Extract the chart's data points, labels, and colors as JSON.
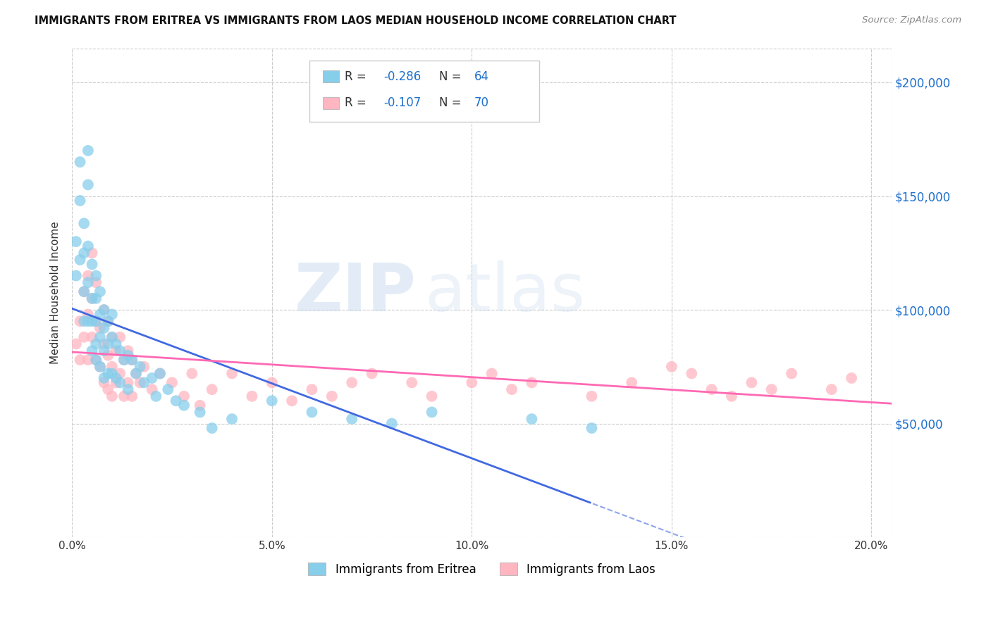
{
  "title": "IMMIGRANTS FROM ERITREA VS IMMIGRANTS FROM LAOS MEDIAN HOUSEHOLD INCOME CORRELATION CHART",
  "source": "Source: ZipAtlas.com",
  "xlabel_ticks": [
    "0.0%",
    "5.0%",
    "10.0%",
    "15.0%",
    "20.0%"
  ],
  "xlabel_tick_vals": [
    0.0,
    0.05,
    0.1,
    0.15,
    0.2
  ],
  "ylabel": "Median Household Income",
  "ylabel_ticks": [
    0,
    50000,
    100000,
    150000,
    200000
  ],
  "ylabel_tick_labels": [
    "",
    "$50,000",
    "$100,000",
    "$150,000",
    "$200,000"
  ],
  "xlim": [
    0.0,
    0.205
  ],
  "ylim": [
    0,
    215000
  ],
  "color_eritrea": "#87CEEB",
  "color_laos": "#FFB6C1",
  "color_line_eritrea": "#4169E1",
  "color_line_laos": "#FF69B4",
  "color_accent": "#1E6FCC",
  "watermark_zip": "ZIP",
  "watermark_atlas": "atlas",
  "eritrea_x": [
    0.001,
    0.001,
    0.002,
    0.002,
    0.002,
    0.003,
    0.003,
    0.003,
    0.003,
    0.004,
    0.004,
    0.004,
    0.004,
    0.004,
    0.005,
    0.005,
    0.005,
    0.005,
    0.006,
    0.006,
    0.006,
    0.006,
    0.006,
    0.007,
    0.007,
    0.007,
    0.007,
    0.008,
    0.008,
    0.008,
    0.008,
    0.009,
    0.009,
    0.009,
    0.01,
    0.01,
    0.01,
    0.011,
    0.011,
    0.012,
    0.012,
    0.013,
    0.014,
    0.014,
    0.015,
    0.016,
    0.017,
    0.018,
    0.02,
    0.021,
    0.022,
    0.024,
    0.026,
    0.028,
    0.032,
    0.035,
    0.04,
    0.05,
    0.06,
    0.07,
    0.08,
    0.09,
    0.115,
    0.13
  ],
  "eritrea_y": [
    130000,
    115000,
    165000,
    148000,
    122000,
    138000,
    125000,
    108000,
    95000,
    170000,
    155000,
    128000,
    112000,
    95000,
    120000,
    105000,
    95000,
    82000,
    115000,
    105000,
    95000,
    85000,
    78000,
    108000,
    98000,
    88000,
    75000,
    100000,
    92000,
    82000,
    70000,
    95000,
    85000,
    72000,
    98000,
    88000,
    72000,
    85000,
    70000,
    82000,
    68000,
    78000,
    80000,
    65000,
    78000,
    72000,
    75000,
    68000,
    70000,
    62000,
    72000,
    65000,
    60000,
    58000,
    55000,
    48000,
    52000,
    60000,
    55000,
    52000,
    50000,
    55000,
    52000,
    48000
  ],
  "laos_x": [
    0.001,
    0.002,
    0.002,
    0.003,
    0.003,
    0.004,
    0.004,
    0.004,
    0.005,
    0.005,
    0.005,
    0.006,
    0.006,
    0.006,
    0.007,
    0.007,
    0.008,
    0.008,
    0.008,
    0.009,
    0.009,
    0.009,
    0.01,
    0.01,
    0.01,
    0.011,
    0.011,
    0.012,
    0.012,
    0.013,
    0.013,
    0.014,
    0.014,
    0.015,
    0.015,
    0.016,
    0.017,
    0.018,
    0.02,
    0.022,
    0.025,
    0.028,
    0.03,
    0.032,
    0.035,
    0.04,
    0.045,
    0.05,
    0.055,
    0.06,
    0.065,
    0.07,
    0.075,
    0.085,
    0.09,
    0.1,
    0.105,
    0.11,
    0.115,
    0.13,
    0.14,
    0.15,
    0.155,
    0.16,
    0.165,
    0.17,
    0.175,
    0.18,
    0.19,
    0.195
  ],
  "laos_y": [
    85000,
    95000,
    78000,
    108000,
    88000,
    115000,
    98000,
    78000,
    125000,
    105000,
    88000,
    112000,
    95000,
    78000,
    92000,
    75000,
    100000,
    85000,
    68000,
    95000,
    80000,
    65000,
    88000,
    75000,
    62000,
    82000,
    68000,
    88000,
    72000,
    78000,
    62000,
    82000,
    68000,
    78000,
    62000,
    72000,
    68000,
    75000,
    65000,
    72000,
    68000,
    62000,
    72000,
    58000,
    65000,
    72000,
    62000,
    68000,
    60000,
    65000,
    62000,
    68000,
    72000,
    68000,
    62000,
    68000,
    72000,
    65000,
    68000,
    62000,
    68000,
    75000,
    72000,
    65000,
    62000,
    68000,
    65000,
    72000,
    65000,
    70000
  ]
}
